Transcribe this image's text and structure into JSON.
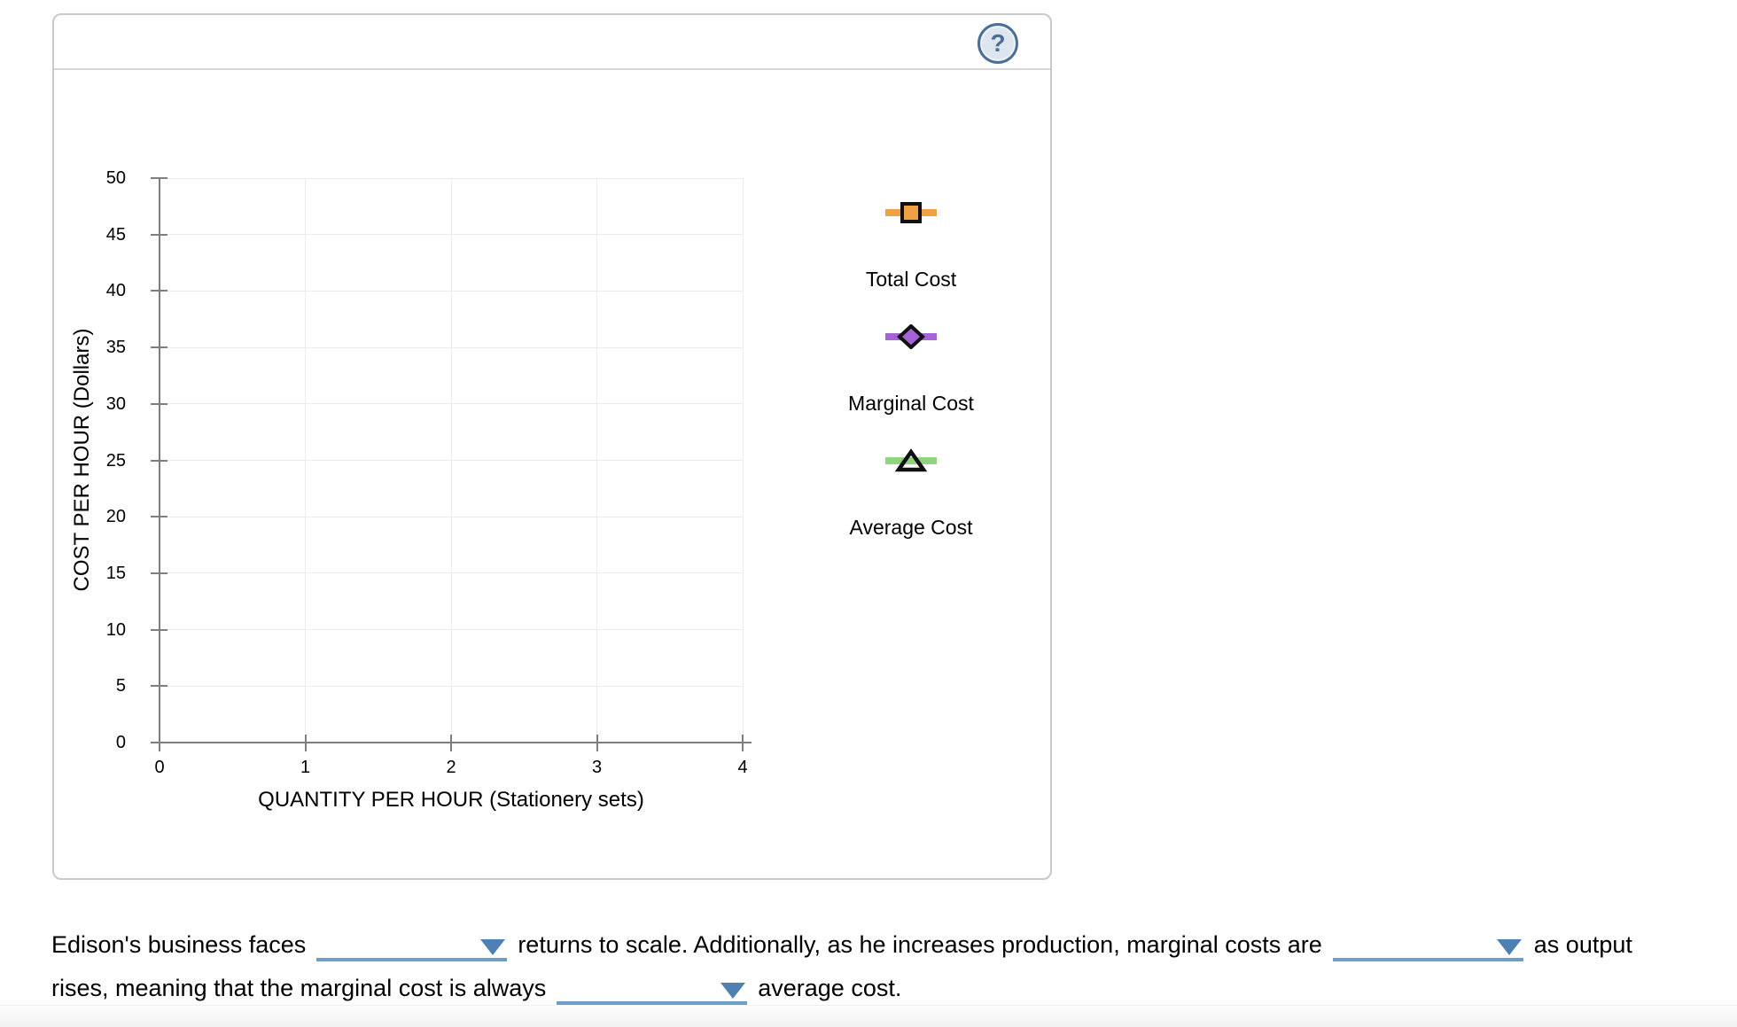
{
  "panel": {
    "help_icon": "?"
  },
  "chart_data": {
    "type": "line",
    "title": "",
    "xlabel": "QUANTITY PER HOUR (Stationery sets)",
    "ylabel": "COST PER HOUR (Dollars)",
    "xlim": [
      0,
      4
    ],
    "ylim": [
      0,
      50
    ],
    "x_ticks": [
      0,
      1,
      2,
      3,
      4
    ],
    "y_ticks": [
      0,
      5,
      10,
      15,
      20,
      25,
      30,
      35,
      40,
      45,
      50
    ],
    "grid": true,
    "legend_position": "right",
    "series": [
      {
        "name": "Total Cost",
        "marker": "square",
        "color": "#F0A143",
        "x": [],
        "values": []
      },
      {
        "name": "Marginal Cost",
        "marker": "diamond",
        "color": "#A563D6",
        "x": [],
        "values": []
      },
      {
        "name": "Average Cost",
        "marker": "triangle",
        "color": "#90D57E",
        "x": [],
        "values": []
      }
    ]
  },
  "question": {
    "line1": {
      "t0": "Edison's business faces",
      "t1": "returns to scale. Additionally, as he increases production, marginal costs are",
      "t2": "as output"
    },
    "line2": {
      "t0": "rises, meaning that the marginal cost is always",
      "t1": "average cost."
    },
    "dropdowns": [
      {
        "value": "",
        "placeholder": ""
      },
      {
        "value": "",
        "placeholder": ""
      },
      {
        "value": "",
        "placeholder": ""
      }
    ]
  },
  "colors": {
    "underline_blue": "#6d9dc9",
    "caret_blue": "#4e80b4",
    "axis_gray": "#7e7e7e",
    "grid_gray": "#ececec",
    "marker_stroke": "#111111",
    "help_blue": "#4a6e96",
    "panel_border": "#c9c9c9"
  }
}
